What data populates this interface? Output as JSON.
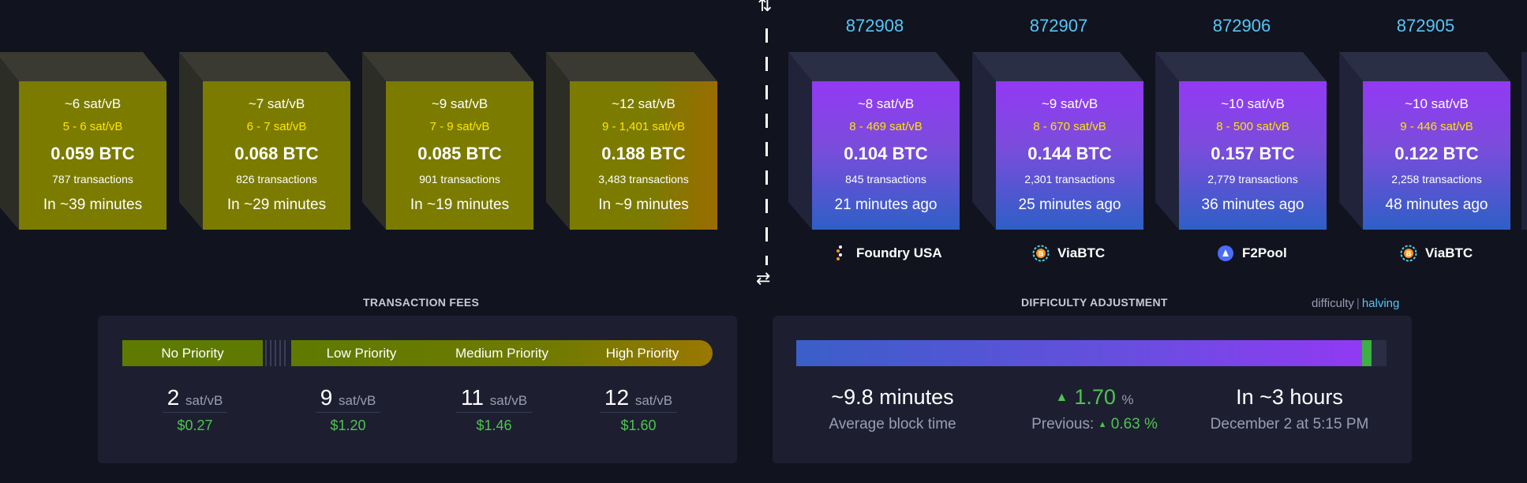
{
  "mempool_blocks": [
    {
      "median_fee": "~6 sat/vB",
      "fee_range": "5 - 6 sat/vB",
      "total": "0.059 BTC",
      "tx_count": "787 transactions",
      "eta": "In ~39 minutes"
    },
    {
      "median_fee": "~7 sat/vB",
      "fee_range": "6 - 7 sat/vB",
      "total": "0.068 BTC",
      "tx_count": "826 transactions",
      "eta": "In ~29 minutes"
    },
    {
      "median_fee": "~9 sat/vB",
      "fee_range": "7 - 9 sat/vB",
      "total": "0.085 BTC",
      "tx_count": "901 transactions",
      "eta": "In ~19 minutes"
    },
    {
      "median_fee": "~12 sat/vB",
      "fee_range": "9 - 1,401 sat/vB",
      "total": "0.188 BTC",
      "tx_count": "3,483 transactions",
      "eta": "In ~9 minutes"
    }
  ],
  "mined_blocks": [
    {
      "height": "872908",
      "median_fee": "~8 sat/vB",
      "fee_range": "8 - 469 sat/vB",
      "total": "0.104 BTC",
      "tx_count": "845 transactions",
      "age": "21 minutes ago",
      "pool": "Foundry USA",
      "pool_icon": "foundry-icon"
    },
    {
      "height": "872907",
      "median_fee": "~9 sat/vB",
      "fee_range": "8 - 670 sat/vB",
      "total": "0.144 BTC",
      "tx_count": "2,301 transactions",
      "age": "25 minutes ago",
      "pool": "ViaBTC",
      "pool_icon": "viabtc-icon"
    },
    {
      "height": "872906",
      "median_fee": "~10 sat/vB",
      "fee_range": "8 - 500 sat/vB",
      "total": "0.157 BTC",
      "tx_count": "2,779 transactions",
      "age": "36 minutes ago",
      "pool": "F2Pool",
      "pool_icon": "f2pool-icon"
    },
    {
      "height": "872905",
      "median_fee": "~10 sat/vB",
      "fee_range": "9 - 446 sat/vB",
      "total": "0.122 BTC",
      "tx_count": "2,258 transactions",
      "age": "48 minutes ago",
      "pool": "ViaBTC",
      "pool_icon": "viabtc-icon"
    }
  ],
  "fees": {
    "title": "TRANSACTION FEES",
    "labels": {
      "no": "No Priority",
      "low": "Low Priority",
      "medium": "Medium Priority",
      "high": "High Priority"
    },
    "values": [
      {
        "rate": "2",
        "unit": "sat/vB",
        "usd": "$0.27"
      },
      {
        "rate": "9",
        "unit": "sat/vB",
        "usd": "$1.20"
      },
      {
        "rate": "11",
        "unit": "sat/vB",
        "usd": "$1.46"
      },
      {
        "rate": "12",
        "unit": "sat/vB",
        "usd": "$1.60"
      }
    ]
  },
  "difficulty": {
    "title": "DIFFICULTY ADJUSTMENT",
    "toggle_difficulty": "difficulty",
    "toggle_separator": "|",
    "toggle_halving": "halving",
    "avg_block_time": "~9.8 minutes",
    "avg_block_time_label": "Average block time",
    "change": "1.70",
    "change_unit": "%",
    "previous_label": "Previous:",
    "previous": "0.63",
    "previous_unit": "%",
    "eta": "In ~3 hours",
    "eta_date": "December 2 at 5:15 PM",
    "progress_fraction": 0.975
  },
  "colors": {
    "mempool_block": "#7b7b00",
    "mined_top": "#9339f4",
    "mined_bottom": "#2e5fc6",
    "height_text": "#57c6f4",
    "fee_range_text": "#ffe600",
    "positive": "#4ec44e"
  }
}
